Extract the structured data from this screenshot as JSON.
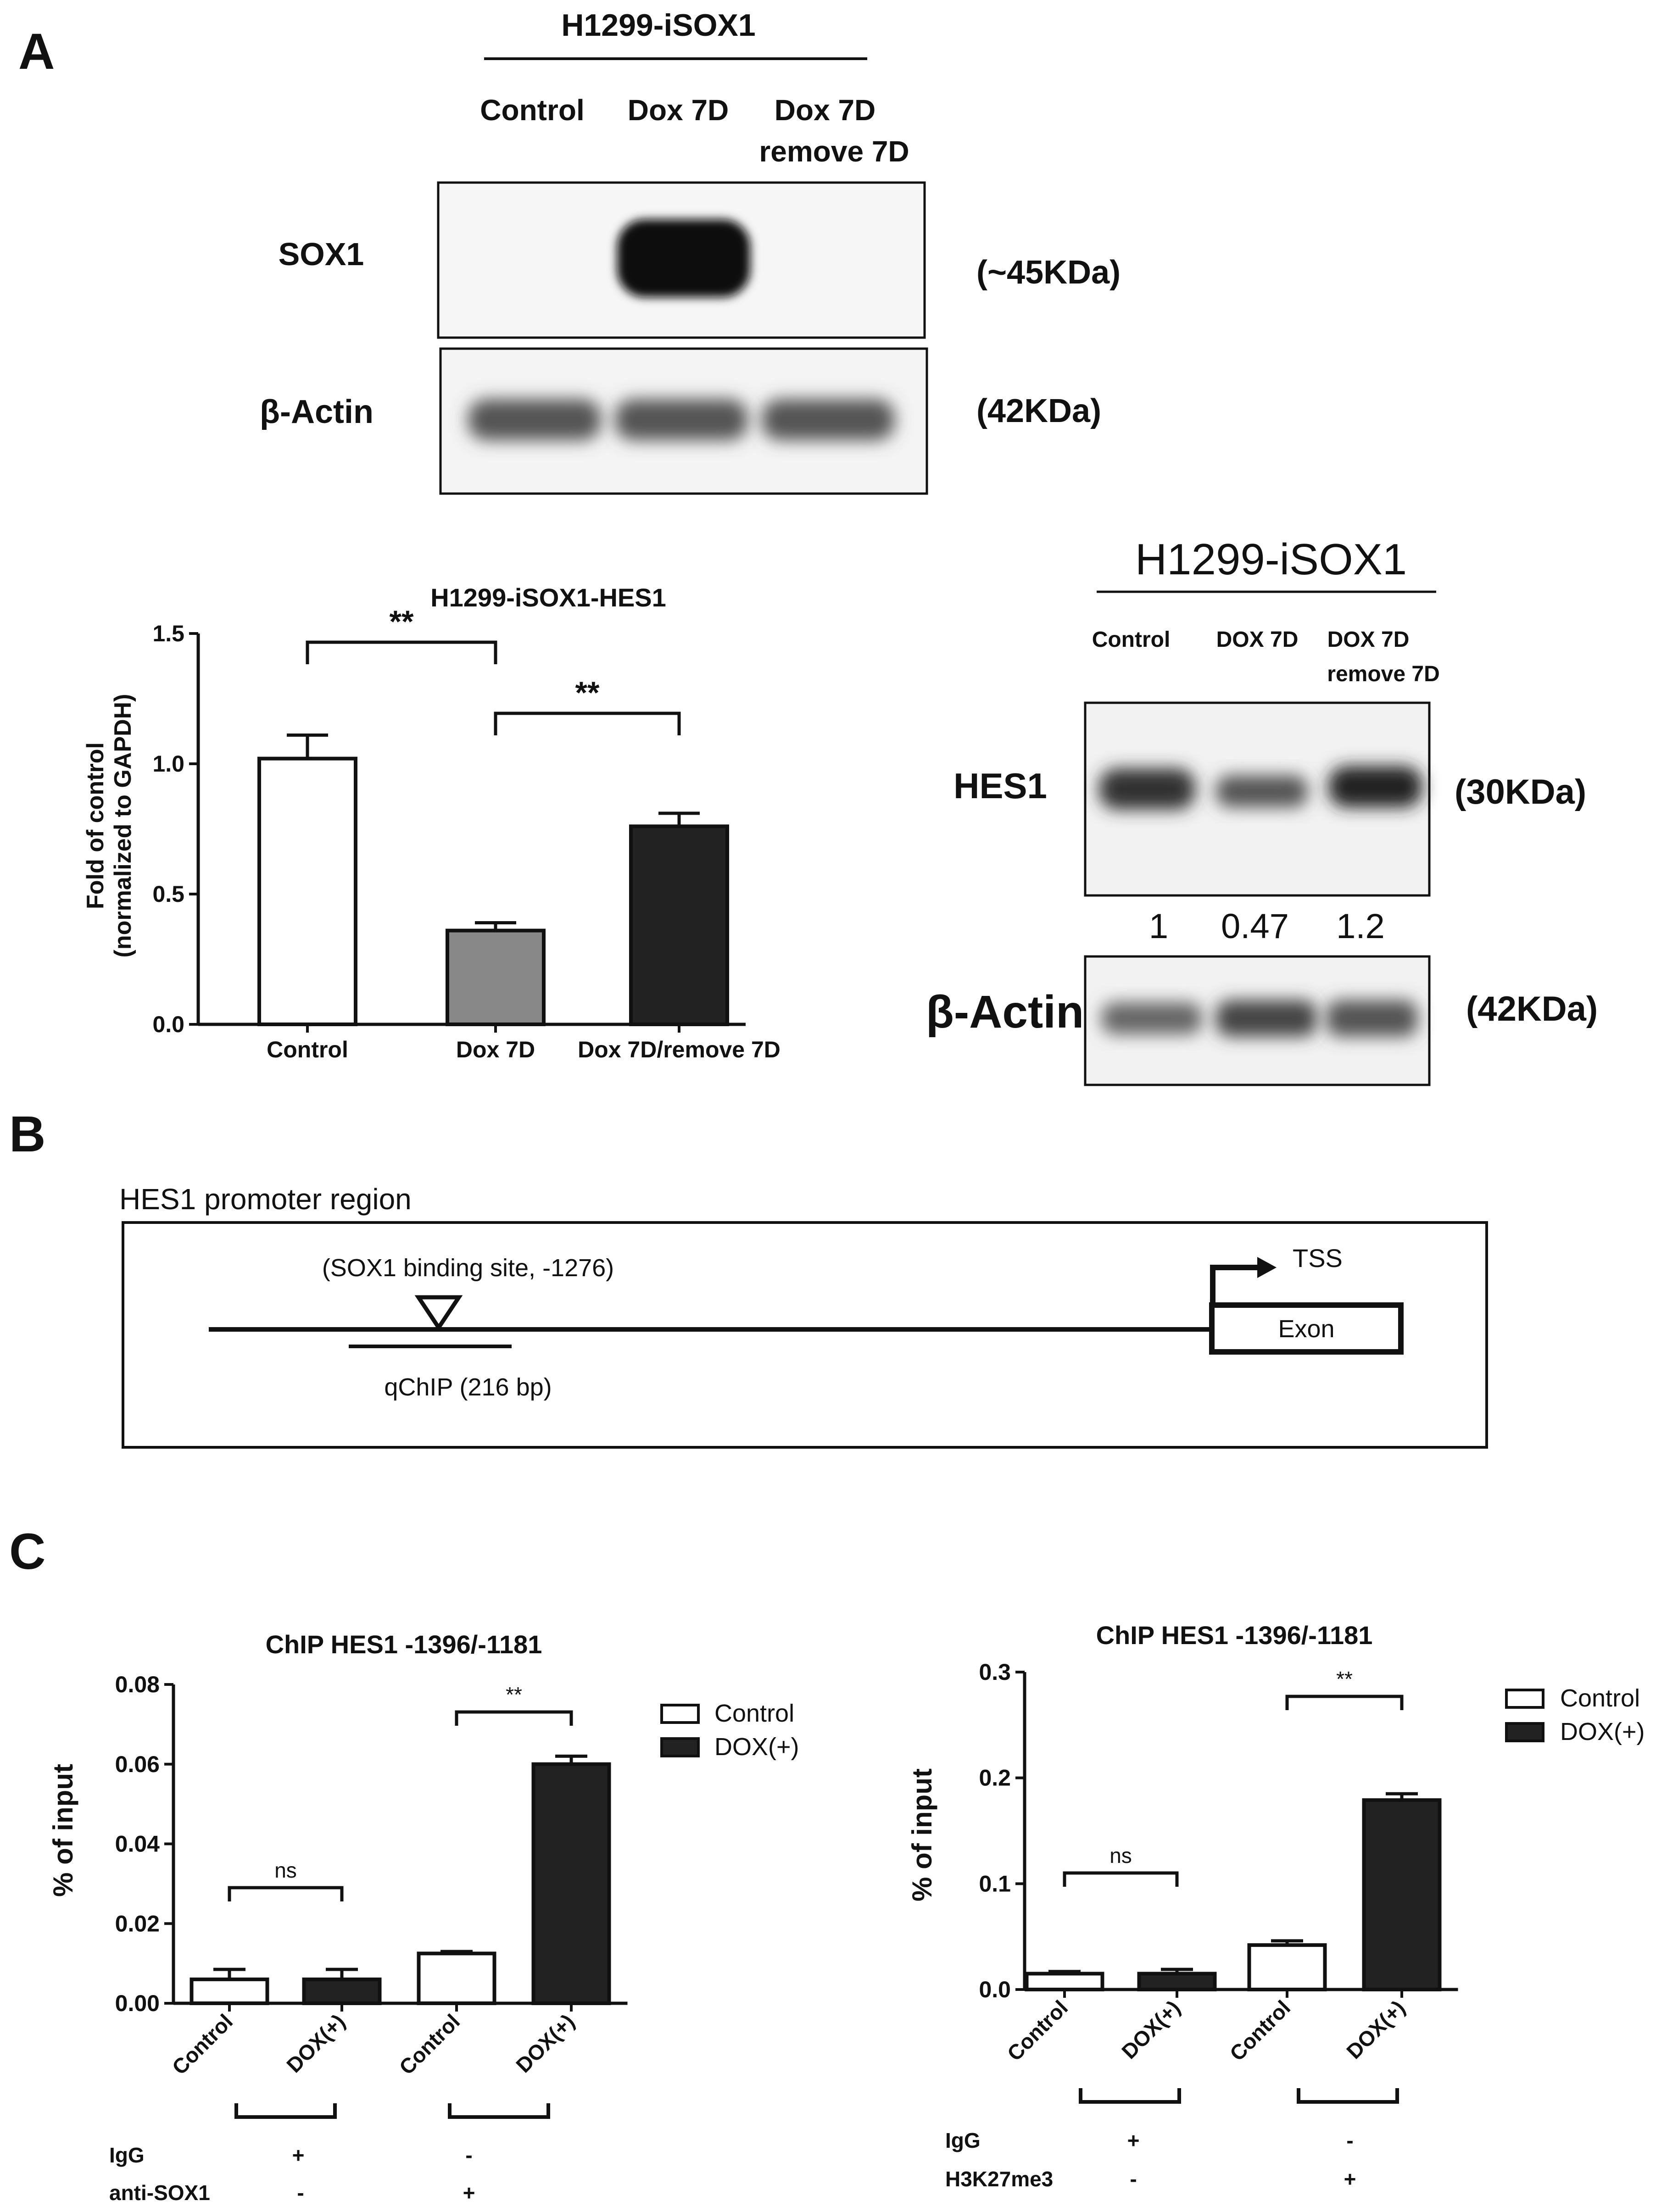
{
  "panel_labels": {
    "a": "A",
    "b": "B",
    "c": "C"
  },
  "colors": {
    "ink": "#111111",
    "bar_white": "#ffffff",
    "bar_gray": "#888888",
    "bar_black": "#222222",
    "blot_bg": "#f4f4f4"
  },
  "panel_a": {
    "blot1": {
      "title": "H1299-iSOX1",
      "lanes": [
        "Control",
        "Dox 7D",
        "Dox 7D",
        "remove 7D"
      ],
      "row_labels": [
        "SOX1",
        "β-Actin"
      ],
      "sizes": [
        "(~45KDa)",
        "(42KDa)"
      ],
      "sox1_intensity": [
        0.0,
        1.0,
        0.0
      ]
    },
    "blot2": {
      "title": "H1299-iSOX1",
      "lanes": [
        "Control",
        "DOX 7D",
        "DOX 7D",
        "remove  7D"
      ],
      "row_labels": [
        "HES1",
        "β-Actin"
      ],
      "sizes": [
        "(30KDa)",
        "(42KDa)"
      ],
      "quant": [
        "1",
        "0.47",
        "1.2"
      ]
    }
  },
  "panel_b": {
    "title": "HES1 promoter region",
    "site_label": "(SOX1 binding site, -1276)",
    "qchip_label": "qChIP (216 bp)",
    "tss_label": "TSS",
    "exon_label": "Exon"
  },
  "panel_c": {
    "left_rows": [
      {
        "label": "IgG",
        "v1": "+",
        "v2": "-"
      },
      {
        "label": "anti-SOX1",
        "v1": "-",
        "v2": "+"
      }
    ],
    "right_rows": [
      {
        "label": "IgG",
        "v1": "+",
        "v2": "-"
      },
      {
        "label": "H3K27me3",
        "v1": "-",
        "v2": "+"
      }
    ]
  },
  "chart_data": [
    {
      "type": "bar",
      "title": "H1299-iSOX1-HES1",
      "categories": [
        "Control",
        "Dox 7D",
        "Dox 7D/remove 7D"
      ],
      "values": [
        1.02,
        0.36,
        0.76
      ],
      "errors": [
        0.09,
        0.03,
        0.05
      ],
      "ylabel_line1": "Fold of control",
      "ylabel_line2": "(normalized to GAPDH)",
      "ylim": [
        0,
        1.5
      ],
      "yticks": [
        "0.0",
        "0.5",
        "1.0",
        "1.5"
      ],
      "significance": [
        "**",
        "**"
      ]
    },
    {
      "type": "bar",
      "title": "ChIP HES1 -1396/-1181",
      "categories": [
        "Control",
        "DOX(+)",
        "Control",
        "DOX(+)"
      ],
      "values": [
        0.006,
        0.006,
        0.0125,
        0.06
      ],
      "errors": [
        0.0025,
        0.0025,
        0.0005,
        0.002
      ],
      "ylabel": "% of input",
      "ylim": [
        0,
        0.08
      ],
      "yticks": [
        "0.00",
        "0.02",
        "0.04",
        "0.06",
        "0.08"
      ],
      "legend": [
        "Control",
        "DOX(+)"
      ],
      "significance": [
        "ns",
        "**"
      ]
    },
    {
      "type": "bar",
      "title": "ChIP HES1 -1396/-1181",
      "categories": [
        "Control",
        "DOX(+)",
        "Control",
        "DOX(+)"
      ],
      "values": [
        0.015,
        0.015,
        0.042,
        0.179
      ],
      "errors": [
        0.002,
        0.004,
        0.004,
        0.006
      ],
      "ylabel": "% of input",
      "ylim": [
        0,
        0.3
      ],
      "yticks": [
        "0.0",
        "0.1",
        "0.2",
        "0.3"
      ],
      "legend": [
        "Control",
        "DOX(+)"
      ],
      "significance": [
        "ns",
        "**"
      ]
    }
  ]
}
